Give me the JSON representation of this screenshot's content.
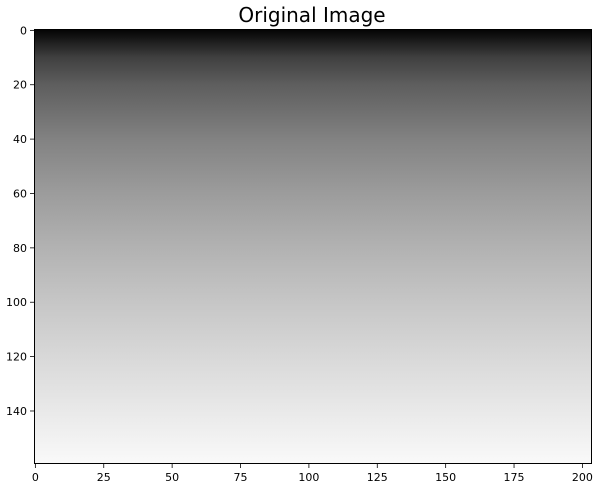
{
  "chart_data": {
    "type": "heatmap",
    "title": "Original Image",
    "xlabel": "",
    "ylabel": "",
    "xlim": [
      -0.5,
      203.5
    ],
    "ylim": [
      159.5,
      -0.5
    ],
    "y_axis_inverted": true,
    "colormap": "gray",
    "x_ticks": [
      0,
      25,
      50,
      75,
      100,
      125,
      150,
      175,
      200
    ],
    "y_ticks": [
      0,
      20,
      40,
      60,
      80,
      100,
      120,
      140
    ],
    "gradient": {
      "direction": "top-to-bottom",
      "start_color": "#050505",
      "stops": [
        {
          "row": 0,
          "color": "#050505"
        },
        {
          "row": 10,
          "color": "#404040"
        },
        {
          "row": 20,
          "color": "#5e5e5e"
        },
        {
          "row": 40,
          "color": "#828282"
        },
        {
          "row": 60,
          "color": "#9c9c9c"
        },
        {
          "row": 80,
          "color": "#b2b2b2"
        },
        {
          "row": 100,
          "color": "#c6c6c6"
        },
        {
          "row": 120,
          "color": "#d8d8d8"
        },
        {
          "row": 140,
          "color": "#e9e9e9"
        },
        {
          "row": 159,
          "color": "#f9f9f9"
        }
      ]
    },
    "grid": false
  }
}
